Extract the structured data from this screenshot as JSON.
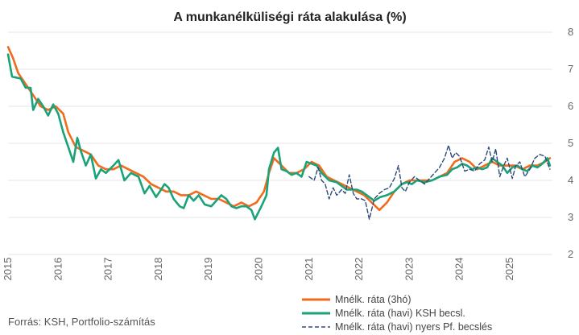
{
  "chart_data": {
    "type": "line",
    "title": "A munkanélküliségi ráta alakulása (%)",
    "xlabel": "",
    "ylabel": "",
    "source": "Forrás: KSH, Portfolio-számítás",
    "xlim": [
      2015.0,
      2025.85
    ],
    "ylim": [
      2,
      8
    ],
    "y_ticks": [
      2,
      3,
      4,
      5,
      6,
      7,
      8
    ],
    "x_ticks": [
      2015,
      2016,
      2017,
      2018,
      2019,
      2020,
      2021,
      2022,
      2023,
      2024,
      2025
    ],
    "grid": true,
    "legend_position": "bottom-right",
    "series": [
      {
        "name": "Mnélk. ráta (3hó)",
        "color": "#f26a1b",
        "dash": false,
        "points": [
          [
            2015.0,
            7.6
          ],
          [
            2015.1,
            7.3
          ],
          [
            2015.2,
            6.9
          ],
          [
            2015.35,
            6.6
          ],
          [
            2015.5,
            6.3
          ],
          [
            2015.65,
            6.0
          ],
          [
            2015.8,
            5.9
          ],
          [
            2015.95,
            6.0
          ],
          [
            2016.1,
            5.8
          ],
          [
            2016.2,
            5.3
          ],
          [
            2016.35,
            4.9
          ],
          [
            2016.5,
            4.8
          ],
          [
            2016.65,
            4.7
          ],
          [
            2016.8,
            4.4
          ],
          [
            2016.95,
            4.3
          ],
          [
            2017.1,
            4.3
          ],
          [
            2017.25,
            4.4
          ],
          [
            2017.4,
            4.3
          ],
          [
            2017.55,
            4.2
          ],
          [
            2017.7,
            4.1
          ],
          [
            2017.85,
            3.9
          ],
          [
            2018.0,
            3.8
          ],
          [
            2018.15,
            3.7
          ],
          [
            2018.3,
            3.7
          ],
          [
            2018.45,
            3.6
          ],
          [
            2018.6,
            3.6
          ],
          [
            2018.75,
            3.7
          ],
          [
            2018.9,
            3.6
          ],
          [
            2019.05,
            3.5
          ],
          [
            2019.2,
            3.5
          ],
          [
            2019.35,
            3.4
          ],
          [
            2019.5,
            3.3
          ],
          [
            2019.65,
            3.4
          ],
          [
            2019.8,
            3.3
          ],
          [
            2019.95,
            3.4
          ],
          [
            2020.1,
            3.7
          ],
          [
            2020.2,
            4.2
          ],
          [
            2020.3,
            4.6
          ],
          [
            2020.45,
            4.4
          ],
          [
            2020.6,
            4.2
          ],
          [
            2020.75,
            4.2
          ],
          [
            2020.9,
            4.3
          ],
          [
            2021.05,
            4.5
          ],
          [
            2021.2,
            4.4
          ],
          [
            2021.35,
            4.1
          ],
          [
            2021.5,
            4.0
          ],
          [
            2021.65,
            3.9
          ],
          [
            2021.8,
            3.8
          ],
          [
            2021.95,
            3.7
          ],
          [
            2022.1,
            3.6
          ],
          [
            2022.25,
            3.4
          ],
          [
            2022.4,
            3.2
          ],
          [
            2022.55,
            3.4
          ],
          [
            2022.7,
            3.7
          ],
          [
            2022.85,
            3.9
          ],
          [
            2023.0,
            4.0
          ],
          [
            2023.15,
            4.0
          ],
          [
            2023.3,
            4.0
          ],
          [
            2023.45,
            4.0
          ],
          [
            2023.6,
            4.1
          ],
          [
            2023.75,
            4.2
          ],
          [
            2023.9,
            4.5
          ],
          [
            2024.05,
            4.6
          ],
          [
            2024.2,
            4.5
          ],
          [
            2024.35,
            4.3
          ],
          [
            2024.5,
            4.4
          ],
          [
            2024.65,
            4.5
          ],
          [
            2024.8,
            4.4
          ],
          [
            2024.95,
            4.4
          ],
          [
            2025.1,
            4.4
          ],
          [
            2025.25,
            4.3
          ],
          [
            2025.4,
            4.4
          ],
          [
            2025.55,
            4.4
          ],
          [
            2025.7,
            4.5
          ],
          [
            2025.8,
            4.6
          ]
        ]
      },
      {
        "name": "Mnélk. ráta (havi) KSH becsl.",
        "color": "#1aa37a",
        "dash": false,
        "points": [
          [
            2015.0,
            7.4
          ],
          [
            2015.08,
            6.8
          ],
          [
            2015.25,
            6.75
          ],
          [
            2015.35,
            6.5
          ],
          [
            2015.45,
            6.5
          ],
          [
            2015.5,
            5.9
          ],
          [
            2015.6,
            6.2
          ],
          [
            2015.7,
            6.0
          ],
          [
            2015.8,
            5.75
          ],
          [
            2015.9,
            6.05
          ],
          [
            2016.0,
            5.8
          ],
          [
            2016.1,
            5.3
          ],
          [
            2016.2,
            4.9
          ],
          [
            2016.3,
            4.5
          ],
          [
            2016.38,
            5.15
          ],
          [
            2016.45,
            4.8
          ],
          [
            2016.55,
            4.4
          ],
          [
            2016.65,
            4.7
          ],
          [
            2016.75,
            4.05
          ],
          [
            2016.85,
            4.3
          ],
          [
            2016.95,
            4.2
          ],
          [
            2017.1,
            4.4
          ],
          [
            2017.2,
            4.55
          ],
          [
            2017.32,
            4.0
          ],
          [
            2017.45,
            4.2
          ],
          [
            2017.6,
            4.1
          ],
          [
            2017.72,
            3.65
          ],
          [
            2017.82,
            3.85
          ],
          [
            2017.95,
            3.55
          ],
          [
            2018.05,
            3.75
          ],
          [
            2018.12,
            3.9
          ],
          [
            2018.2,
            3.8
          ],
          [
            2018.3,
            3.5
          ],
          [
            2018.42,
            3.3
          ],
          [
            2018.5,
            3.25
          ],
          [
            2018.6,
            3.6
          ],
          [
            2018.7,
            3.45
          ],
          [
            2018.8,
            3.6
          ],
          [
            2018.92,
            3.35
          ],
          [
            2019.05,
            3.3
          ],
          [
            2019.15,
            3.45
          ],
          [
            2019.25,
            3.6
          ],
          [
            2019.35,
            3.5
          ],
          [
            2019.45,
            3.3
          ],
          [
            2019.55,
            3.25
          ],
          [
            2019.65,
            3.3
          ],
          [
            2019.75,
            3.3
          ],
          [
            2019.85,
            3.2
          ],
          [
            2019.92,
            2.95
          ],
          [
            2020.05,
            3.3
          ],
          [
            2020.15,
            3.6
          ],
          [
            2020.2,
            4.3
          ],
          [
            2020.3,
            4.75
          ],
          [
            2020.38,
            4.88
          ],
          [
            2020.45,
            4.3
          ],
          [
            2020.55,
            4.25
          ],
          [
            2020.65,
            4.15
          ],
          [
            2020.75,
            4.2
          ],
          [
            2020.85,
            4.1
          ],
          [
            2020.95,
            4.5
          ],
          [
            2021.05,
            4.45
          ],
          [
            2021.15,
            4.4
          ],
          [
            2021.25,
            4.2
          ],
          [
            2021.4,
            4.0
          ],
          [
            2021.55,
            3.95
          ],
          [
            2021.65,
            3.85
          ],
          [
            2021.75,
            3.75
          ],
          [
            2021.85,
            3.75
          ],
          [
            2021.95,
            3.75
          ],
          [
            2022.05,
            3.7
          ],
          [
            2022.15,
            3.6
          ],
          [
            2022.3,
            3.45
          ],
          [
            2022.42,
            3.55
          ],
          [
            2022.55,
            3.6
          ],
          [
            2022.7,
            3.7
          ],
          [
            2022.85,
            3.9
          ],
          [
            2022.95,
            3.95
          ],
          [
            2023.05,
            3.9
          ],
          [
            2023.15,
            4.0
          ],
          [
            2023.3,
            3.95
          ],
          [
            2023.45,
            4.0
          ],
          [
            2023.6,
            4.1
          ],
          [
            2023.75,
            4.15
          ],
          [
            2023.85,
            4.3
          ],
          [
            2023.95,
            4.35
          ],
          [
            2024.05,
            4.45
          ],
          [
            2024.15,
            4.4
          ],
          [
            2024.25,
            4.3
          ],
          [
            2024.35,
            4.35
          ],
          [
            2024.45,
            4.3
          ],
          [
            2024.55,
            4.35
          ],
          [
            2024.65,
            4.6
          ],
          [
            2024.75,
            4.5
          ],
          [
            2024.85,
            4.4
          ],
          [
            2024.95,
            4.2
          ],
          [
            2025.05,
            4.35
          ],
          [
            2025.15,
            4.4
          ],
          [
            2025.25,
            4.3
          ],
          [
            2025.35,
            4.25
          ],
          [
            2025.45,
            4.4
          ],
          [
            2025.55,
            4.35
          ],
          [
            2025.65,
            4.45
          ],
          [
            2025.75,
            4.6
          ],
          [
            2025.8,
            4.4
          ]
        ]
      },
      {
        "name": "Mnélk. ráta (havi) nyers Pf. becslés",
        "color": "#2e4a7a",
        "dash": true,
        "points": [
          [
            2021.0,
            4.1
          ],
          [
            2021.1,
            4.0
          ],
          [
            2021.18,
            4.35
          ],
          [
            2021.25,
            4.0
          ],
          [
            2021.32,
            3.9
          ],
          [
            2021.4,
            3.5
          ],
          [
            2021.48,
            3.8
          ],
          [
            2021.55,
            3.6
          ],
          [
            2021.65,
            3.75
          ],
          [
            2021.72,
            3.65
          ],
          [
            2021.8,
            4.15
          ],
          [
            2021.88,
            3.65
          ],
          [
            2021.95,
            3.5
          ],
          [
            2022.05,
            3.5
          ],
          [
            2022.12,
            3.45
          ],
          [
            2022.2,
            2.95
          ],
          [
            2022.3,
            3.5
          ],
          [
            2022.4,
            3.65
          ],
          [
            2022.5,
            3.75
          ],
          [
            2022.6,
            3.8
          ],
          [
            2022.7,
            4.05
          ],
          [
            2022.78,
            4.4
          ],
          [
            2022.85,
            3.8
          ],
          [
            2022.92,
            3.7
          ],
          [
            2023.0,
            3.95
          ],
          [
            2023.1,
            4.1
          ],
          [
            2023.2,
            4.0
          ],
          [
            2023.3,
            3.9
          ],
          [
            2023.4,
            4.05
          ],
          [
            2023.5,
            4.2
          ],
          [
            2023.6,
            4.35
          ],
          [
            2023.7,
            4.6
          ],
          [
            2023.78,
            4.95
          ],
          [
            2023.85,
            4.6
          ],
          [
            2023.92,
            4.75
          ],
          [
            2024.0,
            4.65
          ],
          [
            2024.1,
            4.25
          ],
          [
            2024.2,
            4.3
          ],
          [
            2024.3,
            4.25
          ],
          [
            2024.4,
            4.45
          ],
          [
            2024.5,
            4.55
          ],
          [
            2024.58,
            4.9
          ],
          [
            2024.65,
            4.5
          ],
          [
            2024.72,
            4.85
          ],
          [
            2024.8,
            4.1
          ],
          [
            2024.88,
            4.4
          ],
          [
            2024.95,
            4.6
          ],
          [
            2025.05,
            4.05
          ],
          [
            2025.12,
            4.4
          ],
          [
            2025.2,
            4.5
          ],
          [
            2025.3,
            4.1
          ],
          [
            2025.4,
            4.3
          ],
          [
            2025.5,
            4.6
          ],
          [
            2025.6,
            4.7
          ],
          [
            2025.7,
            4.65
          ],
          [
            2025.8,
            4.3
          ]
        ]
      }
    ]
  }
}
